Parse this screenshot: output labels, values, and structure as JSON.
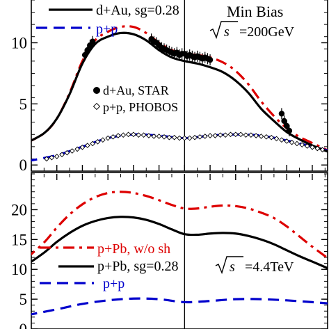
{
  "chart_data": [
    {
      "type": "line",
      "panel": "top",
      "ylim": [
        -0.5,
        13.5
      ],
      "xlim": [
        -6,
        5.6
      ],
      "yticks": [
        0,
        5,
        10
      ],
      "ytick_labels": [
        "0",
        "5",
        "10"
      ],
      "annotation": "Min Bias",
      "energy_label": "=200GeV",
      "sqrt_label": "s",
      "divider_x": 0,
      "series": [
        {
          "name": "d+Au, sg=0.28",
          "style": "solid",
          "color": "#000000",
          "x": [
            -6.2,
            -5.5,
            -5.0,
            -4.5,
            -4.0,
            -3.5,
            -3.0,
            -2.5,
            -2.0,
            -1.5,
            -1.0,
            -0.5,
            0.0,
            0.5,
            1.0,
            1.5,
            2.0,
            2.5,
            3.0,
            3.5,
            4.0,
            4.5,
            5.0,
            5.6
          ],
          "values": [
            1.8,
            2.6,
            3.8,
            5.8,
            8.3,
            9.9,
            10.5,
            10.8,
            10.7,
            10.2,
            9.4,
            8.8,
            8.5,
            8.3,
            8.0,
            7.6,
            6.9,
            5.9,
            4.6,
            3.6,
            2.7,
            2.1,
            1.6,
            1.1
          ]
        },
        {
          "name": "p+p",
          "style": "dash",
          "color": "#0000cc",
          "x": [
            -6.2,
            -5.0,
            -4.0,
            -3.0,
            -2.0,
            -1.0,
            0.0,
            1.0,
            2.0,
            3.0,
            4.0,
            5.0,
            5.6
          ],
          "values": [
            0.3,
            0.8,
            1.5,
            2.2,
            2.5,
            2.4,
            2.2,
            2.4,
            2.5,
            2.4,
            2.0,
            1.5,
            1.2
          ]
        },
        {
          "name": "",
          "style": "dashdot",
          "color": "#dd0000",
          "x": [
            -6.2,
            -5.5,
            -5.0,
            -4.5,
            -4.0,
            -3.5,
            -3.0,
            -2.5,
            -2.0,
            -1.5,
            -1.0,
            -0.5,
            0.0,
            0.5,
            1.0,
            1.5,
            2.0,
            2.5,
            3.0,
            3.5,
            4.0,
            4.5,
            5.0,
            5.6
          ],
          "values": [
            1.8,
            2.6,
            3.8,
            5.9,
            8.5,
            10.2,
            10.9,
            11.3,
            11.3,
            10.8,
            10.0,
            9.4,
            9.1,
            9.0,
            8.8,
            8.4,
            7.7,
            6.6,
            5.2,
            4.0,
            3.0,
            2.3,
            1.8,
            1.2
          ]
        }
      ],
      "markers": [
        {
          "name": "d+Au, STAR",
          "shape": "filled-circle",
          "x": [
            -3.9,
            -3.8,
            -3.7,
            -3.6,
            -1.3,
            -1.2,
            -1.1,
            -1.0,
            -0.9,
            -0.8,
            -0.7,
            -0.6,
            -0.5,
            -0.4,
            -0.3,
            -0.2,
            -0.1,
            0.0,
            0.1,
            0.2,
            0.3,
            0.4,
            0.5,
            0.6,
            0.7,
            0.8,
            0.9,
            1.0,
            3.8,
            3.9,
            4.0,
            4.1
          ],
          "values": [
            9.0,
            9.4,
            9.8,
            10.1,
            10.3,
            10.1,
            10.0,
            9.8,
            9.6,
            9.5,
            9.4,
            9.3,
            9.2,
            9.1,
            9.2,
            9.0,
            9.1,
            9.1,
            8.9,
            9.0,
            8.9,
            8.8,
            8.9,
            8.8,
            8.7,
            8.8,
            8.7,
            8.6,
            4.2,
            3.6,
            3.2,
            2.8
          ]
        },
        {
          "name": "p+p, PHOBOS",
          "shape": "open-diamond",
          "x": [
            -5.4,
            -5.2,
            -5.0,
            -4.8,
            -4.6,
            -4.4,
            -4.2,
            -4.0,
            -3.8,
            -3.6,
            -3.4,
            -3.2,
            -3.0,
            -2.8,
            -2.6,
            -2.4,
            -2.2,
            -2.0,
            -1.8,
            -1.6,
            -1.4,
            -1.2,
            -1.0,
            -0.8,
            -0.6,
            -0.4,
            -0.2,
            0.0,
            0.2,
            0.4,
            0.6,
            0.8,
            1.0,
            1.2,
            1.4,
            1.6,
            1.8,
            2.0,
            2.2,
            2.4,
            2.6,
            2.8,
            3.0,
            3.2,
            3.4,
            3.6,
            3.8,
            4.0,
            4.2,
            4.4,
            4.6,
            4.8,
            5.0,
            5.2,
            5.4
          ],
          "values": [
            0.5,
            0.6,
            0.7,
            0.85,
            1.0,
            1.15,
            1.3,
            1.45,
            1.6,
            1.75,
            1.9,
            2.05,
            2.2,
            2.3,
            2.4,
            2.45,
            2.5,
            2.5,
            2.45,
            2.45,
            2.4,
            2.35,
            2.35,
            2.3,
            2.25,
            2.25,
            2.2,
            2.2,
            2.2,
            2.25,
            2.3,
            2.35,
            2.4,
            2.4,
            2.45,
            2.45,
            2.5,
            2.5,
            2.5,
            2.45,
            2.45,
            2.4,
            2.35,
            2.3,
            2.25,
            2.15,
            2.05,
            1.95,
            1.85,
            1.75,
            1.65,
            1.55,
            1.45,
            1.35,
            1.25
          ]
        }
      ]
    },
    {
      "type": "line",
      "panel": "bottom",
      "ylim": [
        0,
        26
      ],
      "xlim": [
        -6,
        5.6
      ],
      "yticks": [
        0,
        5,
        10,
        15,
        20
      ],
      "ytick_labels": [
        "0",
        "5",
        "10",
        "15",
        "20"
      ],
      "energy_label": "=4.4TeV",
      "sqrt_label": "s",
      "divider_x": 0,
      "series": [
        {
          "name": "p+Pb, w/o sh",
          "style": "dashdot",
          "color": "#dd0000",
          "x": [
            -6.2,
            -5.5,
            -5.0,
            -4.5,
            -4.0,
            -3.5,
            -3.0,
            -2.5,
            -2.0,
            -1.5,
            -1.0,
            -0.5,
            0.0,
            0.5,
            1.0,
            1.5,
            2.0,
            2.5,
            3.0,
            3.5,
            4.0,
            4.5,
            5.0,
            5.6
          ],
          "values": [
            11.8,
            14.5,
            17.0,
            19.2,
            20.9,
            22.1,
            22.8,
            23.0,
            22.8,
            22.3,
            21.6,
            20.8,
            20.2,
            20.2,
            20.5,
            20.7,
            20.6,
            20.2,
            19.5,
            18.6,
            17.2,
            15.5,
            13.8,
            11.9
          ]
        },
        {
          "name": "p+Pb, sg=0.28",
          "style": "solid",
          "color": "#000000",
          "x": [
            -6.2,
            -5.5,
            -5.0,
            -4.5,
            -4.0,
            -3.5,
            -3.0,
            -2.5,
            -2.0,
            -1.5,
            -1.0,
            -0.5,
            0.0,
            0.5,
            1.0,
            1.5,
            2.0,
            2.5,
            3.0,
            3.5,
            4.0,
            4.5,
            5.0,
            5.6
          ],
          "values": [
            10.7,
            12.8,
            14.6,
            16.1,
            17.3,
            18.1,
            18.6,
            18.8,
            18.7,
            18.3,
            17.6,
            16.7,
            15.9,
            15.8,
            16.0,
            16.1,
            16.0,
            15.6,
            15.0,
            14.2,
            13.2,
            12.2,
            11.3,
            10.2
          ]
        },
        {
          "name": "p+p",
          "style": "dash",
          "color": "#0000cc",
          "x": [
            -6.2,
            -5.0,
            -4.0,
            -3.0,
            -2.0,
            -1.0,
            0.0,
            1.0,
            2.0,
            3.0,
            4.0,
            5.0,
            5.6
          ],
          "values": [
            2.3,
            3.3,
            4.2,
            4.8,
            5.1,
            5.0,
            4.5,
            4.7,
            5.0,
            5.0,
            4.8,
            4.5,
            4.3
          ]
        }
      ]
    }
  ]
}
